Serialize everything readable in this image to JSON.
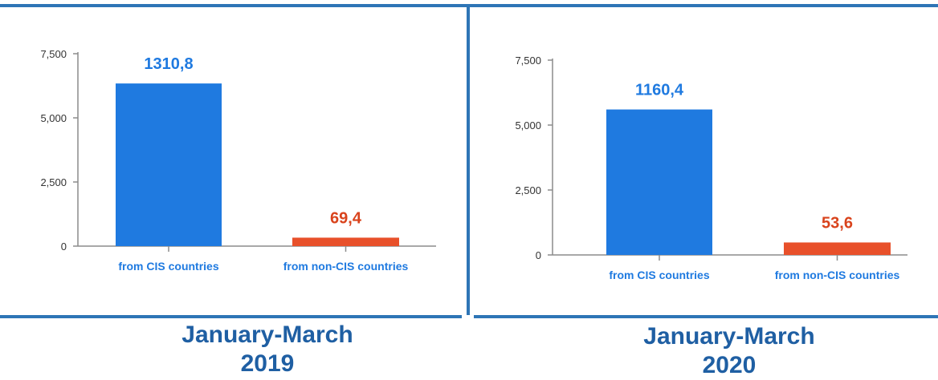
{
  "colors": {
    "frame": "#2e75b6",
    "cis_bar": "#1f7ae0",
    "noncis_bar": "#e8502a",
    "cis_label": "#1f7ae0",
    "noncis_label": "#d9431c",
    "axis": "#8c8c8c",
    "period_text": "#1f5fa3"
  },
  "chart_data": [
    {
      "type": "bar",
      "categories": [
        "from CIS countries",
        "from non-CIS countries"
      ],
      "values": [
        6340,
        330
      ],
      "data_labels": [
        "1310,8",
        "69,4"
      ],
      "yticks": [
        "0",
        "2,500",
        "5,000",
        "7,500"
      ],
      "ylim": [
        0,
        7500
      ],
      "grid": false,
      "period": {
        "line1": "January-March",
        "line2": "2019"
      }
    },
    {
      "type": "bar",
      "categories": [
        "from CIS countries",
        "from non-CIS countries"
      ],
      "values": [
        5600,
        480
      ],
      "data_labels": [
        "1160,4",
        "53,6"
      ],
      "yticks": [
        "0",
        "2,500",
        "5,000",
        "7,500"
      ],
      "ylim": [
        0,
        7500
      ],
      "grid": false,
      "period": {
        "line1": "January-March",
        "line2": "2020"
      }
    }
  ]
}
